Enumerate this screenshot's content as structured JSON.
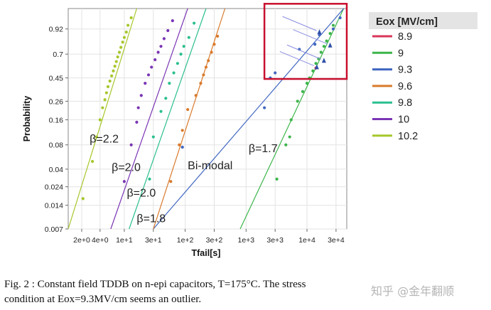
{
  "chart_data": {
    "type": "scatter",
    "subtype": "weibull-probability-plot",
    "xlabel": "Tfail[s]",
    "ylabel": "Probability",
    "x_scale": "log",
    "y_scale": "weibull",
    "xlim": [
      1.2,
      45000
    ],
    "ylim": [
      0.007,
      0.99
    ],
    "x_ticks": [
      {
        "value": 2,
        "label": "2e+0"
      },
      {
        "value": 4,
        "label": "4e+0"
      },
      {
        "value": 10,
        "label": "1e+1"
      },
      {
        "value": 30,
        "label": "3e+1"
      },
      {
        "value": 100,
        "label": "1e+2"
      },
      {
        "value": 300,
        "label": "3e+2"
      },
      {
        "value": 1000,
        "label": "1e+3"
      },
      {
        "value": 3000,
        "label": "3e+3"
      },
      {
        "value": 10000,
        "label": "1e+4"
      },
      {
        "value": 30000,
        "label": "3e+4"
      }
    ],
    "y_ticks": [
      {
        "value": 0.92,
        "label": "0.92"
      },
      {
        "value": 0.7,
        "label": "0.7"
      },
      {
        "value": 0.45,
        "label": "0.45"
      },
      {
        "value": 0.26,
        "label": "0.26"
      },
      {
        "value": 0.16,
        "label": "0.16"
      },
      {
        "value": 0.08,
        "label": "0.08"
      },
      {
        "value": 0.04,
        "label": "0.04"
      },
      {
        "value": 0.024,
        "label": "0.024"
      },
      {
        "value": 0.014,
        "label": "0.014"
      },
      {
        "value": 0.007,
        "label": "0.007"
      }
    ],
    "grid": true,
    "legend": {
      "title": "Eox [MV/cm]",
      "placement": "right",
      "entries": [
        {
          "label": "8.9",
          "color": "#d9365a"
        },
        {
          "label": "9",
          "color": "#3cb54a"
        },
        {
          "label": "9.3",
          "color": "#3f66c0"
        },
        {
          "label": "9.6",
          "color": "#d97a2b"
        },
        {
          "label": "9.8",
          "color": "#2bbf8f"
        },
        {
          "label": "10",
          "color": "#7a35b5"
        },
        {
          "label": "10.2",
          "color": "#a6c72b"
        }
      ]
    },
    "series": [
      {
        "name": "8.9",
        "color": "#d9365a",
        "points": [
          [
            14000,
            0.55
          ]
        ]
      },
      {
        "name": "9",
        "color": "#3cb54a",
        "fit": [
          [
            800,
            0.007
          ],
          [
            40000,
            0.99
          ]
        ],
        "points": [
          [
            3200,
            0.03
          ],
          [
            4500,
            0.08
          ],
          [
            5200,
            0.1
          ],
          [
            5500,
            0.16
          ],
          [
            7000,
            0.26
          ],
          [
            8500,
            0.33
          ],
          [
            10000,
            0.4
          ],
          [
            11000,
            0.45
          ],
          [
            12500,
            0.52
          ],
          [
            14000,
            0.6
          ],
          [
            15500,
            0.65
          ],
          [
            17000,
            0.72
          ],
          [
            19000,
            0.78
          ],
          [
            21000,
            0.83
          ],
          [
            24000,
            0.89
          ],
          [
            27000,
            0.94
          ]
        ]
      },
      {
        "name": "9.3",
        "color": "#3f66c0",
        "fit": [
          [
            30,
            0.007
          ],
          [
            40000,
            0.99
          ]
        ],
        "points": [
          [
            90,
            0.075
          ],
          [
            2000,
            0.22
          ],
          [
            2500,
            0.45
          ],
          [
            3000,
            0.5
          ],
          [
            7500,
            0.75
          ],
          [
            13500,
            0.8
          ],
          [
            16000,
            0.88
          ],
          [
            27000,
            0.92
          ],
          [
            35000,
            0.97
          ]
        ]
      },
      {
        "name": "9.6",
        "color": "#d97a2b",
        "fit": [
          [
            30,
            0.007
          ],
          [
            450,
            0.99
          ]
        ],
        "points": [
          [
            58,
            0.028
          ],
          [
            80,
            0.08
          ],
          [
            90,
            0.12
          ],
          [
            110,
            0.21
          ],
          [
            150,
            0.3
          ],
          [
            180,
            0.4
          ],
          [
            200,
            0.48
          ],
          [
            220,
            0.56
          ],
          [
            240,
            0.63
          ],
          [
            270,
            0.72
          ],
          [
            300,
            0.8
          ],
          [
            340,
            0.87
          ]
        ]
      },
      {
        "name": "9.8",
        "color": "#2bbf8f",
        "fit": [
          [
            12,
            0.007
          ],
          [
            220,
            0.99
          ]
        ],
        "points": [
          [
            26,
            0.03
          ],
          [
            30,
            0.1
          ],
          [
            40,
            0.2
          ],
          [
            48,
            0.28
          ],
          [
            55,
            0.4
          ],
          [
            65,
            0.5
          ],
          [
            75,
            0.6
          ],
          [
            85,
            0.7
          ],
          [
            95,
            0.78
          ],
          [
            115,
            0.86
          ],
          [
            140,
            0.95
          ]
        ]
      },
      {
        "name": "10",
        "color": "#7a35b5",
        "fit": [
          [
            6,
            0.007
          ],
          [
            110,
            0.99
          ]
        ],
        "points": [
          [
            10,
            0.028
          ],
          [
            13,
            0.08
          ],
          [
            16,
            0.15
          ],
          [
            17,
            0.22
          ],
          [
            19,
            0.3
          ],
          [
            22,
            0.4
          ],
          [
            25,
            0.48
          ],
          [
            28,
            0.56
          ],
          [
            32,
            0.64
          ],
          [
            36,
            0.72
          ],
          [
            40,
            0.78
          ],
          [
            45,
            0.85
          ],
          [
            52,
            0.91
          ],
          [
            62,
            0.96
          ]
        ]
      },
      {
        "name": "10.2",
        "color": "#a6c72b",
        "fit": [
          [
            1.2,
            0.007
          ],
          [
            16,
            0.99
          ]
        ],
        "points": [
          [
            2.1,
            0.017
          ],
          [
            3.0,
            0.05
          ],
          [
            3.5,
            0.1
          ],
          [
            4.0,
            0.16
          ],
          [
            4.4,
            0.22
          ],
          [
            4.8,
            0.27
          ],
          [
            5.1,
            0.32
          ],
          [
            5.4,
            0.37
          ],
          [
            5.8,
            0.42
          ],
          [
            6.2,
            0.47
          ],
          [
            6.6,
            0.52
          ],
          [
            7.0,
            0.57
          ],
          [
            7.4,
            0.62
          ],
          [
            7.8,
            0.67
          ],
          [
            8.3,
            0.72
          ],
          [
            8.8,
            0.77
          ],
          [
            9.4,
            0.82
          ],
          [
            10.0,
            0.86
          ],
          [
            10.8,
            0.9
          ],
          [
            11.5,
            0.94
          ],
          [
            13.0,
            0.97
          ]
        ]
      }
    ],
    "annotations": [
      {
        "text": "β=2.2",
        "x": 2.7,
        "y": 0.085
      },
      {
        "text": "β=2.0",
        "x": 6.2,
        "y": 0.038
      },
      {
        "text": "β=2.0",
        "x": 11,
        "y": 0.018
      },
      {
        "text": "β=1.8",
        "x": 16,
        "y": 0.0085
      },
      {
        "text": "Bi-modal",
        "x": 110,
        "y": 0.04
      },
      {
        "text": "β=1.7",
        "x": 1100,
        "y": 0.065
      }
    ],
    "highlight_box": {
      "x_range": [
        2000,
        45000
      ],
      "y_range": [
        0.44,
        0.995
      ],
      "color": "#c8102e"
    },
    "markers": [
      {
        "x": 16000,
        "y": 0.9
      },
      {
        "x": 24000,
        "y": 0.79
      },
      {
        "x": 19000,
        "y": 0.63
      },
      {
        "x": 14500,
        "y": 0.56
      }
    ]
  },
  "caption": {
    "line1": "Fig. 2 : Constant field TDDB on n-epi capacitors, T=175°C.   The stress",
    "line2": "condition at Eox=9.3MV/cm seems an outlier."
  },
  "watermark": "知乎 @金年翻顺"
}
